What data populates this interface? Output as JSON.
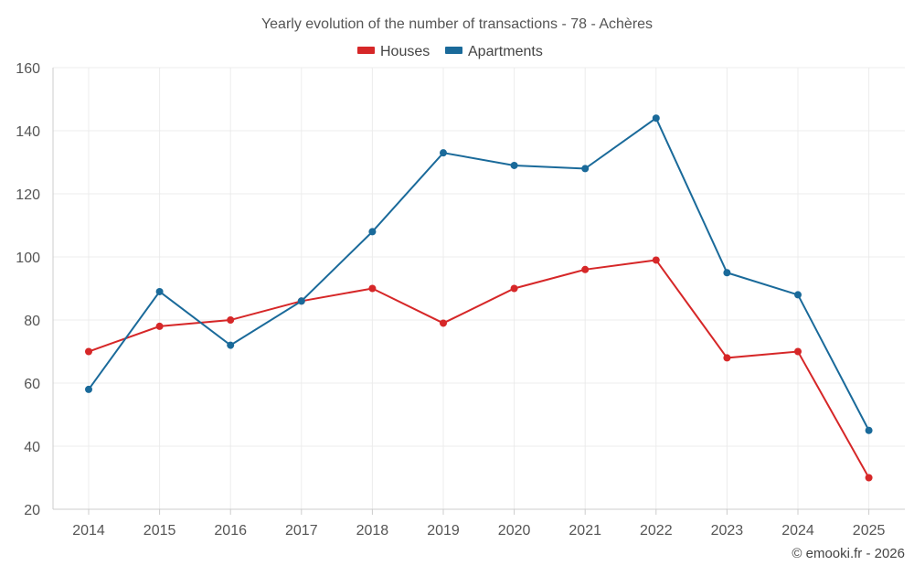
{
  "chart_data": {
    "type": "line",
    "title": "Yearly evolution of the number of transactions - 78 - Achères",
    "xlabel": "",
    "ylabel": "",
    "categories": [
      "2014",
      "2015",
      "2016",
      "2017",
      "2018",
      "2019",
      "2020",
      "2021",
      "2022",
      "2023",
      "2024",
      "2025"
    ],
    "yticks": [
      20,
      40,
      60,
      80,
      100,
      120,
      140,
      160
    ],
    "ylim": [
      20,
      160
    ],
    "grid": true,
    "legend_position": "top-center",
    "series": [
      {
        "name": "Houses",
        "color": "#d62728",
        "values": [
          70,
          78,
          80,
          86,
          90,
          79,
          90,
          96,
          99,
          68,
          70,
          30
        ]
      },
      {
        "name": "Apartments",
        "color": "#1a6a9a",
        "values": [
          58,
          89,
          72,
          86,
          108,
          133,
          129,
          128,
          144,
          95,
          88,
          45
        ]
      }
    ],
    "credit": "© emooki.fr - 2026"
  }
}
